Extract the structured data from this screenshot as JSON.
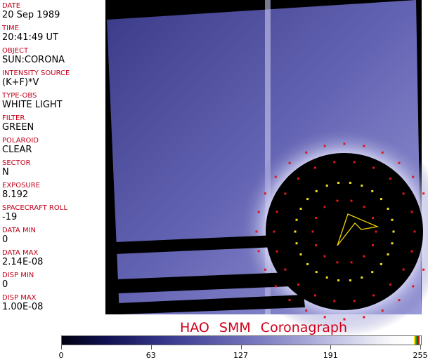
{
  "metadata": [
    {
      "label": "DATE",
      "value": "20 Sep 1989"
    },
    {
      "label": "TIME",
      "value": "20:41:49 UT"
    },
    {
      "label": "OBJECT",
      "value": "SUN:CORONA"
    },
    {
      "label": "INTENSITY SOURCE",
      "value": "(K+F)*V"
    },
    {
      "label": "TYPE-OBS",
      "value": "WHITE LIGHT"
    },
    {
      "label": "FILTER",
      "value": "GREEN"
    },
    {
      "label": "POLAROID",
      "value": "CLEAR"
    },
    {
      "label": "SECTOR",
      "value": "N"
    },
    {
      "label": "EXPOSURE",
      "value": "8.192"
    },
    {
      "label": "SPACECRAFT ROLL",
      "value": "-19"
    },
    {
      "label": "DATA MIN",
      "value": "0"
    },
    {
      "label": "DATA MAX",
      "value": "2.14E-08"
    },
    {
      "label": "DISP MIN",
      "value": "0"
    },
    {
      "label": "DISP MAX",
      "value": "1.00E-08"
    }
  ],
  "title": "HAO  SMM Coronagraph",
  "colorbar": {
    "ticks": [
      "0",
      "63",
      "127",
      "191",
      "255"
    ],
    "min": 0,
    "max": 255
  },
  "colors": {
    "label": "#c0001a",
    "title": "#d0001a",
    "corona": "#6a6ab8",
    "occulter": "#000000"
  }
}
